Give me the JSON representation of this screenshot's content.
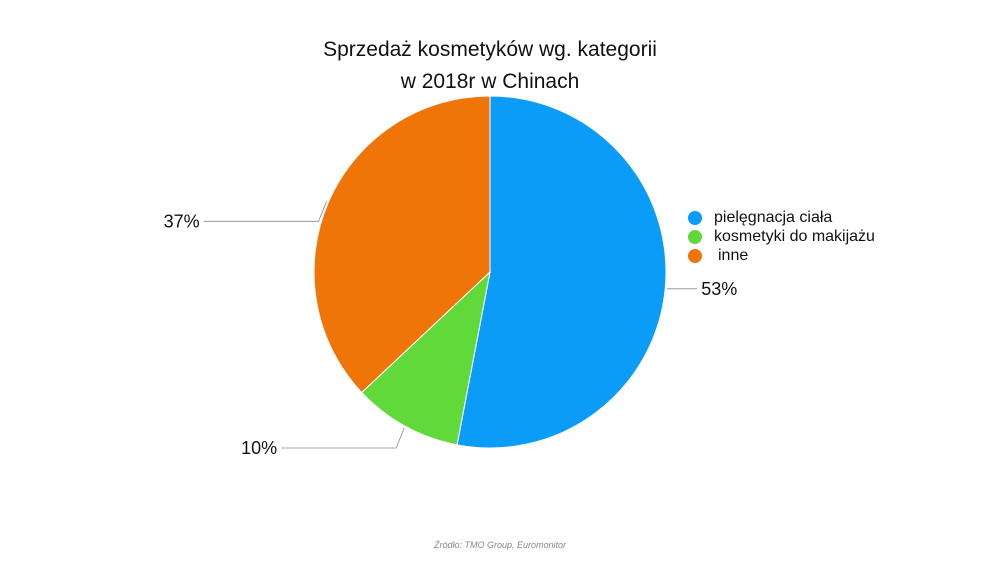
{
  "chart_data": {
    "type": "pie",
    "title_lines": [
      "Sprzedaż kosmetyków wg. kategorii",
      "w 2018r w Chinach"
    ],
    "slices": [
      {
        "name": "pielęgnacja ciała",
        "value": 53,
        "label": "53%",
        "color": "#0A9CF7"
      },
      {
        "name": "kosmetyki do makijażu",
        "value": 10,
        "label": "10%",
        "color": "#62D93A"
      },
      {
        "name": "inne",
        "value": 37,
        "label": "37%",
        "color": "#F07508"
      }
    ],
    "legend_position": "right",
    "source": "Źródło: TMO Group, Euromonitor"
  }
}
